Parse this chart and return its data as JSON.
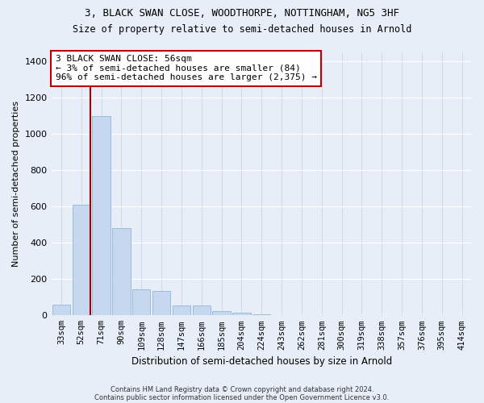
{
  "title_line1": "3, BLACK SWAN CLOSE, WOODTHORPE, NOTTINGHAM, NG5 3HF",
  "title_line2": "Size of property relative to semi-detached houses in Arnold",
  "xlabel": "Distribution of semi-detached houses by size in Arnold",
  "ylabel": "Number of semi-detached properties",
  "categories": [
    "33sqm",
    "52sqm",
    "71sqm",
    "90sqm",
    "109sqm",
    "128sqm",
    "147sqm",
    "166sqm",
    "185sqm",
    "204sqm",
    "224sqm",
    "243sqm",
    "262sqm",
    "281sqm",
    "300sqm",
    "319sqm",
    "338sqm",
    "357sqm",
    "376sqm",
    "395sqm",
    "414sqm"
  ],
  "values": [
    60,
    610,
    1100,
    480,
    145,
    135,
    55,
    55,
    22,
    13,
    8,
    0,
    0,
    0,
    0,
    0,
    0,
    0,
    0,
    0,
    0
  ],
  "bar_color": "#c5d8f0",
  "bar_edge_color": "#9abcd8",
  "property_line_color": "#aa0000",
  "annotation_text": "3 BLACK SWAN CLOSE: 56sqm\n← 3% of semi-detached houses are smaller (84)\n96% of semi-detached houses are larger (2,375) →",
  "annotation_box_color": "#ffffff",
  "annotation_box_edge_color": "#bb0000",
  "ylim": [
    0,
    1450
  ],
  "yticks": [
    0,
    200,
    400,
    600,
    800,
    1000,
    1200,
    1400
  ],
  "footer_line1": "Contains HM Land Registry data © Crown copyright and database right 2024.",
  "footer_line2": "Contains public sector information licensed under the Open Government Licence v3.0.",
  "background_color": "#e8eef8",
  "grid_color": "#c8d4e8"
}
